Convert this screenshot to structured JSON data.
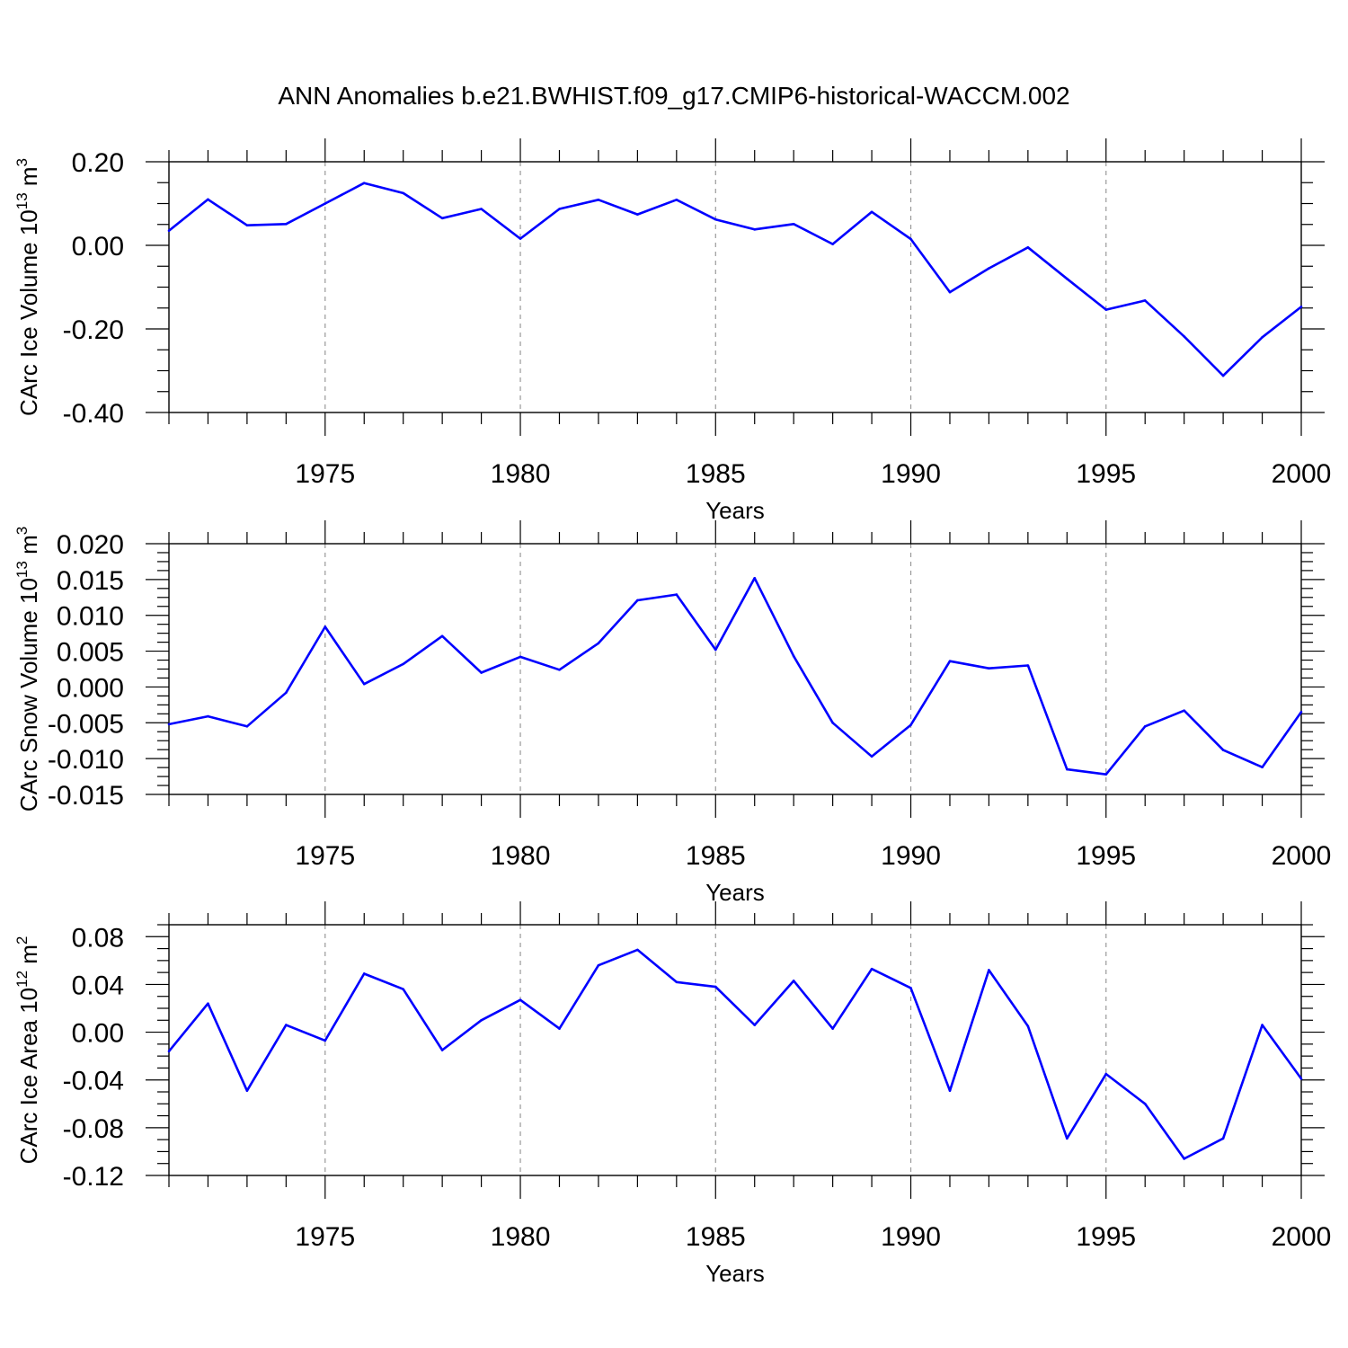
{
  "figure": {
    "title": "ANN Anomalies b.e21.BWHIST.f09_g17.CMIP6-historical-WACCM.002"
  },
  "colors": {
    "line": "#0000ff",
    "axis": "#000000",
    "grid": "#999999"
  },
  "chart_data": [
    {
      "type": "line",
      "ylabel_main": "CArc Ice Volume 10",
      "ylabel_exp": "13",
      "ylabel_unit": "m",
      "ylabel_unit_exp": "3",
      "xlabel": "Years",
      "xlim": [
        1971,
        2000
      ],
      "ylim": [
        -0.4,
        0.2
      ],
      "yticks": [
        "0.20",
        "0.00",
        "-0.20",
        "-0.40"
      ],
      "yticks_values": [
        0.2,
        0.0,
        -0.2,
        -0.4
      ],
      "xticks": [
        "1975",
        "1980",
        "1985",
        "1990",
        "1995",
        "2000"
      ],
      "x": [
        1971,
        1972,
        1973,
        1974,
        1975,
        1976,
        1977,
        1978,
        1979,
        1980,
        1981,
        1982,
        1983,
        1984,
        1985,
        1986,
        1987,
        1988,
        1989,
        1990,
        1991,
        1992,
        1993,
        1994,
        1995,
        1996,
        1997,
        1998,
        1999,
        2000
      ],
      "series": [
        {
          "values": [
            0.035,
            0.11,
            0.048,
            0.051,
            0.1,
            0.149,
            0.125,
            0.065,
            0.087,
            0.016,
            0.087,
            0.109,
            0.074,
            0.109,
            0.062,
            0.038,
            0.051,
            0.003,
            0.08,
            0.015,
            -0.112,
            -0.055,
            -0.005,
            -0.08,
            -0.154,
            -0.132,
            -0.218,
            -0.312,
            -0.22,
            -0.147
          ]
        }
      ],
      "grid": "vertical dashed at major x ticks"
    },
    {
      "type": "line",
      "ylabel_main": "CArc Snow Volume 10",
      "ylabel_exp": "13",
      "ylabel_unit": "m",
      "ylabel_unit_exp": "3",
      "xlabel": "Years",
      "xlim": [
        1971,
        2000
      ],
      "ylim": [
        -0.015,
        0.02
      ],
      "yticks": [
        "0.020",
        "0.015",
        "0.010",
        "0.005",
        "0.000",
        "-0.005",
        "-0.010",
        "-0.015"
      ],
      "yticks_values": [
        0.02,
        0.015,
        0.01,
        0.005,
        0.0,
        -0.005,
        -0.01,
        -0.015
      ],
      "xticks": [
        "1975",
        "1980",
        "1985",
        "1990",
        "1995",
        "2000"
      ],
      "x": [
        1971,
        1972,
        1973,
        1974,
        1975,
        1976,
        1977,
        1978,
        1979,
        1980,
        1981,
        1982,
        1983,
        1984,
        1985,
        1986,
        1987,
        1988,
        1989,
        1990,
        1991,
        1992,
        1993,
        1994,
        1995,
        1996,
        1997,
        1998,
        1999,
        2000
      ],
      "series": [
        {
          "values": [
            -0.0052,
            -0.0041,
            -0.0055,
            -0.0008,
            0.0084,
            0.0004,
            0.0032,
            0.0071,
            0.002,
            0.0042,
            0.0024,
            0.0061,
            0.0121,
            0.0129,
            0.0052,
            0.0152,
            0.0043,
            -0.005,
            -0.0097,
            -0.0053,
            0.0036,
            0.0026,
            0.003,
            -0.0115,
            -0.0122,
            -0.0055,
            -0.0033,
            -0.0088,
            -0.0112,
            -0.0035
          ]
        }
      ],
      "grid": "vertical dashed at major x ticks"
    },
    {
      "type": "line",
      "ylabel_main": "CArc Ice Area 10",
      "ylabel_exp": "12",
      "ylabel_unit": "m",
      "ylabel_unit_exp": "2",
      "xlabel": "Years",
      "xlim": [
        1971,
        2000
      ],
      "ylim": [
        -0.12,
        0.09
      ],
      "yticks": [
        "0.08",
        "0.04",
        "0.00",
        "-0.04",
        "-0.08",
        "-0.12"
      ],
      "yticks_values": [
        0.08,
        0.04,
        0.0,
        -0.04,
        -0.08,
        -0.12
      ],
      "xticks": [
        "1975",
        "1980",
        "1985",
        "1990",
        "1995",
        "2000"
      ],
      "x": [
        1971,
        1972,
        1973,
        1974,
        1975,
        1976,
        1977,
        1978,
        1979,
        1980,
        1981,
        1982,
        1983,
        1984,
        1985,
        1986,
        1987,
        1988,
        1989,
        1990,
        1991,
        1992,
        1993,
        1994,
        1995,
        1996,
        1997,
        1998,
        1999,
        2000
      ],
      "series": [
        {
          "values": [
            -0.016,
            0.024,
            -0.049,
            0.006,
            -0.007,
            0.049,
            0.036,
            -0.015,
            0.01,
            0.027,
            0.003,
            0.056,
            0.069,
            0.042,
            0.038,
            0.006,
            0.043,
            0.003,
            0.053,
            0.037,
            -0.049,
            0.052,
            0.005,
            -0.089,
            -0.035,
            -0.06,
            -0.106,
            -0.089,
            0.006,
            -0.039
          ]
        }
      ],
      "grid": "vertical dashed at major x ticks"
    }
  ]
}
